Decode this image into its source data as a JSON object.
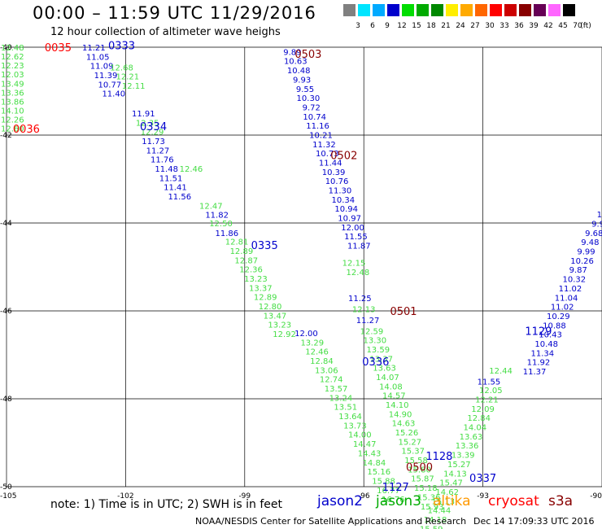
{
  "header": {
    "title": "00:00 – 11:59 UTC 11/29/2016",
    "subtitle": "12 hour collection of altimeter wave heighs"
  },
  "colorbar": {
    "unit": "(ft)",
    "labels": [
      "3",
      "6",
      "9",
      "12",
      "15",
      "18",
      "21",
      "24",
      "27",
      "30",
      "33",
      "36",
      "39",
      "42",
      "45",
      "70"
    ],
    "colors": [
      "#808080",
      "#00e5ff",
      "#00aaff",
      "#0000cc",
      "#00dd00",
      "#00aa00",
      "#008800",
      "#ffee00",
      "#ffaa00",
      "#ff6600",
      "#ff0000",
      "#cc0000",
      "#880000",
      "#660055",
      "#ff66ff",
      "#000000"
    ]
  },
  "note": "note:  1) Time is in UTC;  2) SWH is in feet",
  "missions": [
    {
      "name": "jason2",
      "color": "#0000cc"
    },
    {
      "name": "jason3",
      "color": "#00aa00"
    },
    {
      "name": "altika",
      "color": "#ff9900"
    },
    {
      "name": "cryosat",
      "color": "#ff0000"
    },
    {
      "name": "s3a",
      "color": "#880000"
    }
  ],
  "footer": {
    "left": "NOAA/NESDIS Center for Satellite Applications and Research",
    "right": "Dec 14 17:09:33 UTC 2016"
  },
  "chart_data": {
    "type": "scatter",
    "title": "00:00 – 11:59 UTC 11/29/2016",
    "xlim": [
      -105,
      -90
    ],
    "ylim": [
      -50,
      -40
    ],
    "xticks": [
      -105,
      -102,
      -99,
      -96,
      -93,
      -90
    ],
    "yticks": [
      -40,
      -42,
      -44,
      -46,
      -48,
      -50
    ],
    "colors": {
      "jason2": "#0000cc",
      "jason3": "#44dd44",
      "altika": "#ff9900",
      "cryosat": "#ff0000",
      "s3a": "#880000"
    },
    "time_labels": [
      {
        "text": "0035",
        "x": -103.7,
        "y": -40.0,
        "sat": "cryosat"
      },
      {
        "text": "0036",
        "x": -104.5,
        "y": -41.85,
        "sat": "cryosat"
      },
      {
        "text": "0333",
        "x": -102.1,
        "y": -39.95,
        "sat": "jason2"
      },
      {
        "text": "0334",
        "x": -101.3,
        "y": -41.8,
        "sat": "jason2"
      },
      {
        "text": "0335",
        "x": -98.5,
        "y": -44.5,
        "sat": "jason2"
      },
      {
        "text": "0336",
        "x": -95.7,
        "y": -47.15,
        "sat": "jason2"
      },
      {
        "text": "0337",
        "x": -93.0,
        "y": -49.8,
        "sat": "jason2"
      },
      {
        "text": "1127",
        "x": -95.2,
        "y": -50.0,
        "sat": "jason2"
      },
      {
        "text": "1128",
        "x": -94.1,
        "y": -49.3,
        "sat": "jason2"
      },
      {
        "text": "1129",
        "x": -91.6,
        "y": -46.45,
        "sat": "jason2"
      },
      {
        "text": "0503",
        "x": -97.4,
        "y": -40.15,
        "sat": "s3a"
      },
      {
        "text": "0502",
        "x": -96.5,
        "y": -42.45,
        "sat": "s3a"
      },
      {
        "text": "0501",
        "x": -95.0,
        "y": -46.0,
        "sat": "s3a"
      },
      {
        "text": "0500",
        "x": -94.6,
        "y": -49.55,
        "sat": "s3a"
      }
    ],
    "tracks": [
      {
        "sat": "jason3",
        "x0": -104.85,
        "y0": -40.0,
        "dx": 0.0,
        "dy": 0.205,
        "values": [
          "12.48",
          "12.62",
          "12.23",
          "12.03",
          "13.49",
          "13.36",
          "13.86",
          "14.10",
          "12.26",
          "12.60"
        ]
      },
      {
        "sat": "jason2",
        "x0": -102.8,
        "y0": -40.0,
        "dx": 0.1,
        "dy": 0.21,
        "values": [
          "11.21",
          "11.05",
          "11.09",
          "11.39",
          "10.77",
          "11.40"
        ]
      },
      {
        "sat": "jason3",
        "x0": -102.1,
        "y0": -40.45,
        "dx": 0.15,
        "dy": 0.21,
        "values": [
          "12.68",
          "12.21",
          "12.11"
        ]
      },
      {
        "sat": "jason2",
        "x0": -101.55,
        "y0": -41.5,
        "dx": 0.12,
        "dy": 0.21,
        "values": [
          "11.91"
        ]
      },
      {
        "sat": "jason3",
        "x0": -101.45,
        "y0": -41.71,
        "dx": 0.12,
        "dy": 0.21,
        "values": [
          "12.35",
          "12.29"
        ]
      },
      {
        "sat": "jason2",
        "x0": -101.3,
        "y0": -42.13,
        "dx": 0.11,
        "dy": 0.21,
        "values": [
          "11.73",
          "11.27",
          "11.76",
          "11.48",
          "11.51",
          "11.41",
          "11.56"
        ]
      },
      {
        "sat": "jason3",
        "x0": -100.35,
        "y0": -42.76,
        "dx": 0.12,
        "dy": 0.21,
        "values": [
          "12.46"
        ]
      },
      {
        "sat": "jason3",
        "x0": -99.85,
        "y0": -43.6,
        "dx": 0.12,
        "dy": 0.21,
        "values": [
          "12.47"
        ]
      },
      {
        "sat": "jason2",
        "x0": -99.7,
        "y0": -43.81,
        "dx": 0.12,
        "dy": 0.21,
        "values": [
          "11.82"
        ]
      },
      {
        "sat": "jason3",
        "x0": -99.6,
        "y0": -44.0,
        "dx": 0.12,
        "dy": 0.21,
        "values": [
          "12.50"
        ]
      },
      {
        "sat": "jason2",
        "x0": -99.45,
        "y0": -44.22,
        "dx": 0.12,
        "dy": 0.21,
        "values": [
          "11.86"
        ]
      },
      {
        "sat": "jason3",
        "x0": -99.2,
        "y0": -44.42,
        "dx": 0.12,
        "dy": 0.21,
        "values": [
          "12.81",
          "12.89",
          "12.87",
          "12.36",
          "13.23",
          "13.37",
          "12.89",
          "12.80",
          "13.47",
          "13.23",
          "12.92"
        ]
      },
      {
        "sat": "jason2",
        "x0": -97.45,
        "y0": -46.5,
        "dx": 0.12,
        "dy": 0.21,
        "values": [
          "12.00"
        ]
      },
      {
        "sat": "jason3",
        "x0": -97.3,
        "y0": -46.71,
        "dx": 0.12,
        "dy": 0.21,
        "values": [
          "13.29",
          "12.46",
          "12.84",
          "13.06",
          "12.74",
          "13.57",
          "13.24",
          "13.51",
          "13.64",
          "13.73",
          "14.00",
          "14.47",
          "14.43",
          "14.84",
          "15.16",
          "15.88",
          "16.77",
          "16.76"
        ]
      },
      {
        "sat": "jason2",
        "x0": -97.8,
        "y0": -40.1,
        "dx": 0.08,
        "dy": 0.21,
        "values": [
          "9.89",
          "10.63",
          "10.48",
          "9.93",
          "9.55",
          "10.30",
          "9.72",
          "10.74",
          "11.16",
          "10.21",
          "11.32",
          "10.73",
          "11.44",
          "10.39",
          "10.76",
          "11.30",
          "10.34",
          "10.94",
          "10.97",
          "12.00",
          "11.55",
          "11.87"
        ]
      },
      {
        "sat": "jason3",
        "x0": -96.25,
        "y0": -44.9,
        "dx": 0.1,
        "dy": 0.21,
        "values": [
          "12.15",
          "12.48"
        ]
      },
      {
        "sat": "jason2",
        "x0": -96.1,
        "y0": -45.7,
        "dx": 0.1,
        "dy": 0.21,
        "values": [
          "11.25"
        ]
      },
      {
        "sat": "jason3",
        "x0": -96.0,
        "y0": -45.95,
        "dx": 0.1,
        "dy": 0.21,
        "values": [
          "12.13"
        ]
      },
      {
        "sat": "jason2",
        "x0": -95.9,
        "y0": -46.2,
        "dx": 0.1,
        "dy": 0.21,
        "values": [
          "11.27"
        ]
      },
      {
        "sat": "jason3",
        "x0": -95.8,
        "y0": -46.45,
        "dx": 0.08,
        "dy": 0.21,
        "values": [
          "12.59",
          "13.30",
          "13.59",
          "13.37",
          "13.63",
          "14.07",
          "14.08",
          "14.57",
          "14.10",
          "14.90",
          "14.63",
          "15.26",
          "15.27",
          "15.37",
          "15.58",
          "15.80",
          "15.87",
          "15.18",
          "15.36",
          "15.93"
        ]
      },
      {
        "sat": "jason2",
        "x0": -90.0,
        "y0": -43.8,
        "dx": -0.1,
        "dy": 0.21,
        "values": [
          "10",
          "9.9",
          "9.68",
          "9.48",
          "9.99",
          "10.26",
          "9.87",
          "10.32",
          "11.02",
          "11.04",
          "11.02",
          "10.29",
          "10.88",
          "10.43",
          "10.48",
          "11.34",
          "11.92",
          "11.37"
        ]
      },
      {
        "sat": "jason3",
        "x0": -92.55,
        "y0": -47.35,
        "dx": -0.1,
        "dy": 0.21,
        "values": [
          "12.44"
        ]
      },
      {
        "sat": "jason2",
        "x0": -92.85,
        "y0": -47.6,
        "dx": -0.1,
        "dy": 0.21,
        "values": [
          "11.55"
        ]
      },
      {
        "sat": "jason3",
        "x0": -92.8,
        "y0": -47.8,
        "dx": -0.1,
        "dy": 0.21,
        "values": [
          "12.05",
          "12.21",
          "12.09",
          "12.84",
          "14.04",
          "13.63",
          "13.36",
          "13.39",
          "15.27",
          "14.13",
          "15.47",
          "14.62",
          "15.13",
          "14.44",
          "14.18",
          "15.59"
        ]
      }
    ]
  }
}
